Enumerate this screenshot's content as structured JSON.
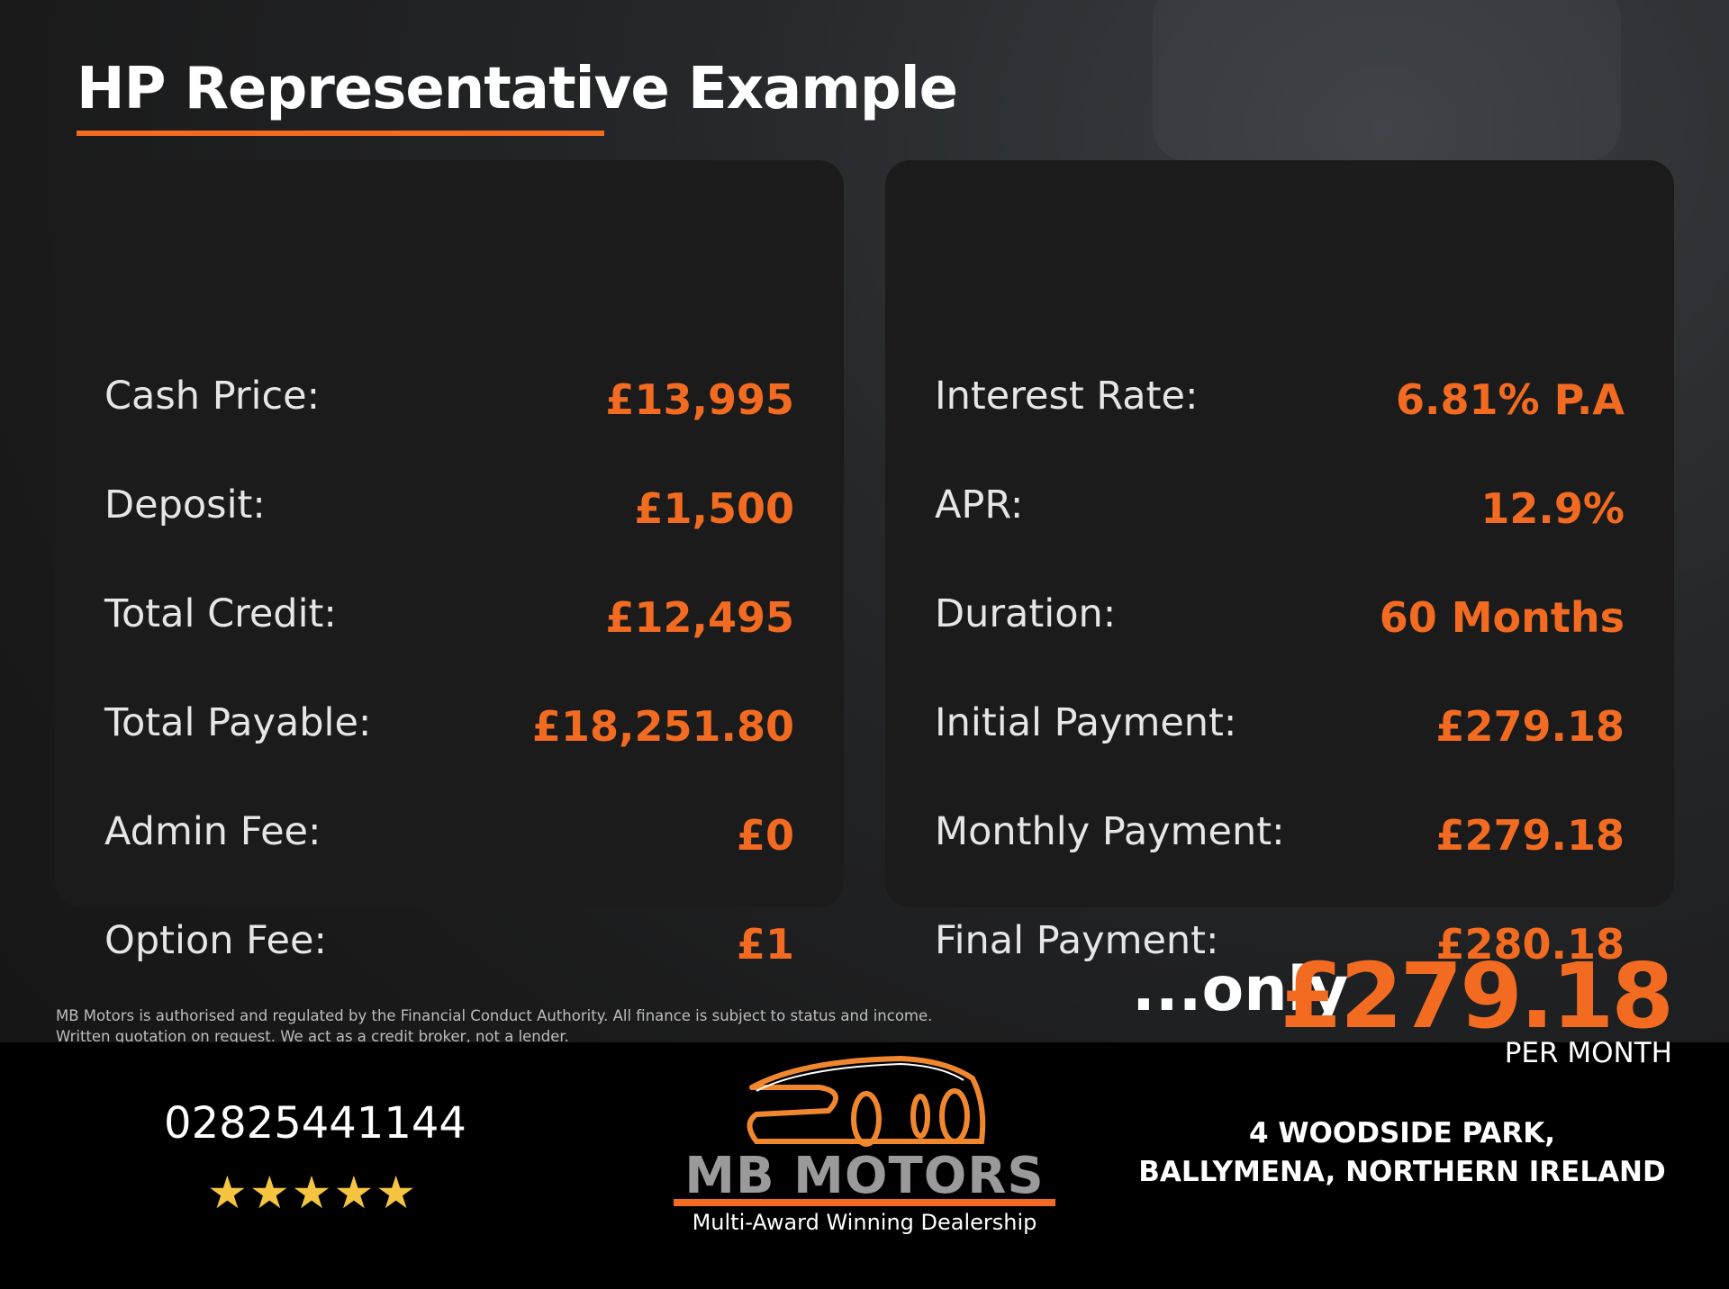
{
  "title": "HP Representative Example",
  "left_card": [
    {
      "label": "Cash Price:",
      "value": "£13,995"
    },
    {
      "label": "Deposit:",
      "value": "£1,500"
    },
    {
      "label": "Total Credit:",
      "value": "£12,495"
    },
    {
      "label": "Total Payable:",
      "value": "£18,251.80"
    },
    {
      "label": "Admin Fee:",
      "value": "£0"
    },
    {
      "label": "Option Fee:",
      "value": "£1"
    }
  ],
  "right_card": [
    {
      "label": "Interest Rate:",
      "value": "6.81% P.A"
    },
    {
      "label": "APR:",
      "value": "12.9%"
    },
    {
      "label": "Duration:",
      "value": "60 Months"
    },
    {
      "label": "Initial Payment:",
      "value": "£279.18"
    },
    {
      "label": "Monthly Payment:",
      "value": "£279.18"
    },
    {
      "label": "Final Payment:",
      "value": "£280.18"
    }
  ],
  "disclaimer": {
    "line1": "MB Motors is authorised and regulated by the Financial Conduct Authority. All finance is subject to status and income.",
    "line2": "Written quotation on request. We act as a credit broker, not a lender."
  },
  "headline": {
    "prefix": "...only",
    "price": "£279.18",
    "suffix": "PER MONTH"
  },
  "footer": {
    "phone": "02825441144",
    "rating_stars": 5,
    "stars_text": "★★★★★",
    "logo": {
      "name": "MB MOTORS",
      "tagline": "Multi-Award Winning Dealership"
    },
    "address_line1": "4 WOODSIDE PARK,",
    "address_line2": "BALLYMENA, NORTHERN IRELAND"
  },
  "colors": {
    "accent": "#f26b21",
    "card": "#1b1b1b",
    "footer": "#000000",
    "stars": "#f5c542"
  }
}
